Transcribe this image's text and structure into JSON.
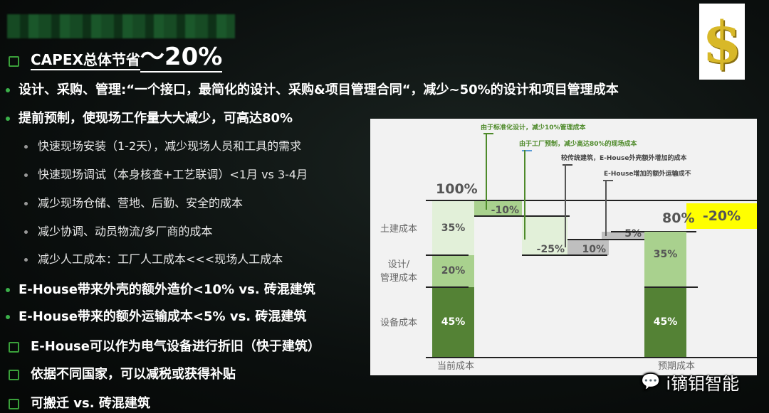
{
  "bullets": [
    {
      "type": "square",
      "text": "CAPEX总体节省",
      "emph": "～20%"
    },
    {
      "type": "dot",
      "text": "设计、采购、管理:“一个接口，最简化的设计、采购&项目管理合同“，减少~50%的设计和项目管理成本"
    },
    {
      "type": "dot",
      "text": "提前预制，使现场工作量大大减少，可高达80%"
    },
    {
      "type": "sub",
      "text": "快速现场安装（1-2天），减少现场人员和工具的需求"
    },
    {
      "type": "sub",
      "text": "快速现场调试（本身核查+工艺联调）<1月 vs 3-4月"
    },
    {
      "type": "sub",
      "text": "减少现场仓储、营地、后勤、安全的成本"
    },
    {
      "type": "sub",
      "text": "减少协调、动员物流/多厂商的成本"
    },
    {
      "type": "sub",
      "text": "减少人工成本：工厂人工成本<<<现场人工成本"
    },
    {
      "type": "dot",
      "text": "E-House带来外壳的额外造价<10% vs. 砖混建筑"
    },
    {
      "type": "dot",
      "text": "E-House带来的额外运输成本<5% vs. 砖混建筑"
    },
    {
      "type": "square",
      "text": "E-House可以作为电气设备进行折旧（快于建筑）"
    },
    {
      "type": "square",
      "text": "依据不同国家，可以减税或获得补贴"
    },
    {
      "type": "square",
      "text": "可搬迁 vs. 砖混建筑"
    }
  ],
  "chart_data": {
    "type": "waterfall",
    "categories": [
      "当前成本",
      "",
      "",
      "",
      "",
      "预期成本"
    ],
    "row_labels": [
      "土建成本",
      "设计/\n管理成本",
      "设备成本"
    ],
    "current": {
      "total_label": "100%",
      "stack": [
        {
          "name": "设备成本",
          "value": 45,
          "label": "45%"
        },
        {
          "name": "设计/管理成本",
          "value": 20,
          "label": "20%"
        },
        {
          "name": "土建成本",
          "value": 35,
          "label": "35%"
        }
      ]
    },
    "steps": [
      {
        "value": -10,
        "label": "-10%",
        "annotation": "由于标准化设计，减少10%管理成本"
      },
      {
        "value": -25,
        "label": "-25%",
        "annotation": "由于工厂预制，减少高达80%的现场成本"
      },
      {
        "value": 10,
        "label": "10%",
        "annotation": "较传统建筑，E-House外壳额外增加的成本"
      },
      {
        "value": 5,
        "label": "5%",
        "annotation": "E-House增加的额外运输成不"
      }
    ],
    "expected": {
      "total_label": "80%",
      "stack": [
        {
          "value": 45,
          "label": "45%"
        },
        {
          "value": 35,
          "label": "35%"
        }
      ]
    },
    "saving": {
      "value": -20,
      "label": "-20%"
    },
    "colors": {
      "dark_green": "#548235",
      "mid_green": "#a9d18e",
      "light_green": "#e2f0d9",
      "grey": "#bfbfbf",
      "yellow": "#ffff00"
    }
  },
  "watermark": "i镝钼智能"
}
